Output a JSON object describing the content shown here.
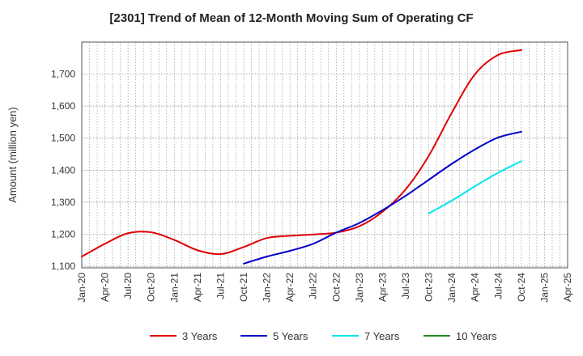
{
  "chart_data": {
    "type": "line",
    "title": "[2301]  Trend of Mean of 12-Month Moving Sum of Operating CF",
    "xlabel": "",
    "ylabel": "Amount (million yen)",
    "ylim": [
      1095,
      1800
    ],
    "yticks": [
      1100,
      1200,
      1300,
      1400,
      1500,
      1600,
      1700
    ],
    "ytick_labels": [
      "1,100",
      "1,200",
      "1,300",
      "1,400",
      "1,500",
      "1,600",
      "1,700"
    ],
    "x_start": "Jan-20",
    "x_end": "Apr-25",
    "categories": [
      "Jan-20",
      "Apr-20",
      "Jul-20",
      "Oct-20",
      "Jan-21",
      "Apr-21",
      "Jul-21",
      "Oct-21",
      "Jan-22",
      "Apr-22",
      "Jul-22",
      "Oct-22",
      "Jan-23",
      "Apr-23",
      "Jul-23",
      "Oct-23",
      "Jan-24",
      "Apr-24",
      "Jul-24",
      "Oct-24",
      "Jan-25",
      "Apr-25"
    ],
    "series": [
      {
        "name": "3 Years",
        "color": "#e00000",
        "points": [
          [
            "2020-01",
            1130
          ],
          [
            "2020-04",
            1170
          ],
          [
            "2020-07",
            1203
          ],
          [
            "2020-10",
            1206
          ],
          [
            "2021-01",
            1182
          ],
          [
            "2021-04",
            1150
          ],
          [
            "2021-07",
            1138
          ],
          [
            "2021-10",
            1160
          ],
          [
            "2022-01",
            1188
          ],
          [
            "2022-04",
            1195
          ],
          [
            "2022-07",
            1199
          ],
          [
            "2022-10",
            1205
          ],
          [
            "2023-01",
            1225
          ],
          [
            "2023-04",
            1270
          ],
          [
            "2023-07",
            1340
          ],
          [
            "2023-10",
            1445
          ],
          [
            "2024-01",
            1580
          ],
          [
            "2024-04",
            1700
          ],
          [
            "2024-07",
            1760
          ],
          [
            "2024-10",
            1775
          ]
        ]
      },
      {
        "name": "5 Years",
        "color": "#0000cc",
        "points": [
          [
            "2021-10",
            1108
          ],
          [
            "2022-01",
            1130
          ],
          [
            "2022-04",
            1148
          ],
          [
            "2022-07",
            1170
          ],
          [
            "2022-10",
            1205
          ],
          [
            "2023-01",
            1235
          ],
          [
            "2023-04",
            1275
          ],
          [
            "2023-07",
            1320
          ],
          [
            "2023-10",
            1370
          ],
          [
            "2024-01",
            1420
          ],
          [
            "2024-04",
            1465
          ],
          [
            "2024-07",
            1502
          ],
          [
            "2024-10",
            1520
          ]
        ]
      },
      {
        "name": "7 Years",
        "color": "#00e5ee",
        "points": [
          [
            "2023-10",
            1265
          ],
          [
            "2024-01",
            1305
          ],
          [
            "2024-04",
            1350
          ],
          [
            "2024-07",
            1392
          ],
          [
            "2024-10",
            1428
          ]
        ]
      },
      {
        "name": "10 Years",
        "color": "#228b22",
        "points": []
      }
    ],
    "grid": true,
    "legend_position": "bottom"
  }
}
